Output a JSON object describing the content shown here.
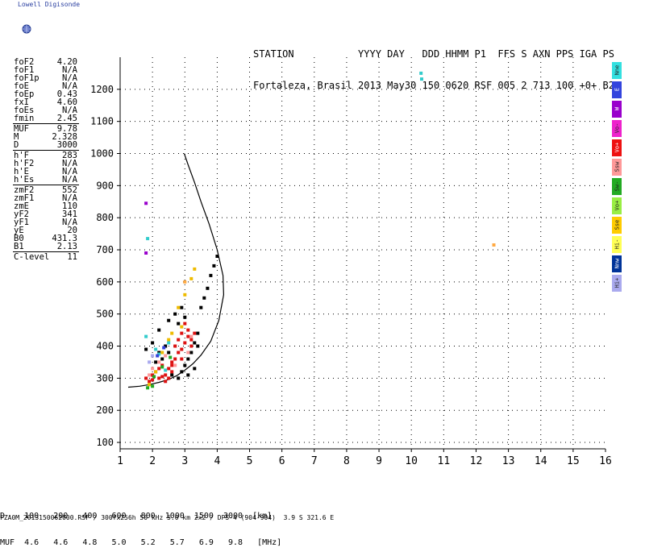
{
  "logo": {
    "text": "Lowell Digisonde",
    "icon": "globe-icon"
  },
  "header": {
    "line1": "STATION           YYYY DAY   DDD HHMM P1  FFS S AXN PPS IGA PS",
    "line2": "Fortaleza, Brasil 2013 May30 150 0620 RSF 005 2 713 100 +0+ B2"
  },
  "params": [
    {
      "label": "foF2",
      "value": "4.20"
    },
    {
      "label": "foF1",
      "value": "N/A"
    },
    {
      "label": "foF1p",
      "value": "N/A"
    },
    {
      "label": "foE",
      "value": "N/A"
    },
    {
      "label": "foEp",
      "value": "0.43"
    },
    {
      "label": "fxI",
      "value": "4.60"
    },
    {
      "label": "foEs",
      "value": "N/A"
    },
    {
      "label": "fmin",
      "value": "2.45"
    },
    {
      "sep": true
    },
    {
      "label": "MUF",
      "value": "9.78"
    },
    {
      "label": "M",
      "value": "2.328"
    },
    {
      "label": "D",
      "value": "3000"
    },
    {
      "sep": true
    },
    {
      "label": "h'F",
      "value": "283"
    },
    {
      "label": "h'F2",
      "value": "N/A"
    },
    {
      "label": "h'E",
      "value": "N/A"
    },
    {
      "label": "h'Es",
      "value": "N/A"
    },
    {
      "sep": true
    },
    {
      "label": "zmF2",
      "value": "552"
    },
    {
      "label": "zmF1",
      "value": "N/A"
    },
    {
      "label": "zmE",
      "value": "110"
    },
    {
      "label": "yF2",
      "value": "341"
    },
    {
      "label": "yF1",
      "value": "N/A"
    },
    {
      "label": "yE",
      "value": "20"
    },
    {
      "label": "B0",
      "value": "431.3"
    },
    {
      "label": "B1",
      "value": "2.13"
    },
    {
      "sep": true
    },
    {
      "label": "C-level",
      "value": "11"
    }
  ],
  "legend": [
    {
      "label": "Nne",
      "color": "#33e0e0"
    },
    {
      "label": "E",
      "color": "#3344dd"
    },
    {
      "label": "W",
      "color": "#9900cc"
    },
    {
      "label": "Vo-",
      "color": "#ee22cc"
    },
    {
      "label": "Vo+",
      "color": "#ee1111"
    },
    {
      "label": "Ssw",
      "color": "#ff9999"
    },
    {
      "label": "Sw-",
      "color": "#22aa22"
    },
    {
      "label": "Vo+",
      "color": "#99ee44"
    },
    {
      "label": "Sse",
      "color": "#ffcc00"
    },
    {
      "label": "Hi-",
      "color": "#ffff55"
    },
    {
      "label": "Nnw",
      "color": "#003399"
    },
    {
      "label": "Hi+",
      "color": "#aaaaee"
    }
  ],
  "footer": {
    "d_row": "D    100   200   400   600   800  1000  1500  3000  [km]",
    "muf_row": "MUF  4.6   4.6   4.8   5.0   5.2   5.7   6.9   9.8   [MHz]",
    "file_line": "FZA0M_2013150062000.RSF / 300fx256h 50 kHz 5.0 km 2x2 / DPS-4 (904-904)  3.9 S 321.6 E"
  },
  "chart_data": {
    "type": "scatter",
    "title": "",
    "xlabel": "",
    "ylabel": "",
    "xlim": [
      1,
      16
    ],
    "ylim": [
      80,
      1300
    ],
    "xticks": [
      1,
      2,
      3,
      4,
      5,
      6,
      7,
      8,
      9,
      10,
      11,
      12,
      13,
      14,
      15,
      16
    ],
    "yticks": [
      100,
      200,
      300,
      400,
      500,
      600,
      700,
      800,
      900,
      1000,
      1100,
      1200
    ],
    "grid": true,
    "profile_curve": {
      "x": [
        1.25,
        1.6,
        1.9,
        2.2,
        2.5,
        2.75,
        3.0,
        3.25,
        3.5,
        3.8,
        4.05,
        4.2,
        4.18,
        4.0,
        3.75,
        3.5,
        3.3,
        3.1,
        2.98
      ],
      "y": [
        272,
        275,
        280,
        287,
        296,
        308,
        325,
        345,
        372,
        415,
        480,
        560,
        620,
        700,
        780,
        850,
        910,
        965,
        1000
      ]
    },
    "series": [
      {
        "name": "Vo+",
        "color": "#dd1111",
        "points": [
          [
            1.8,
            300
          ],
          [
            1.9,
            290
          ],
          [
            2.0,
            310
          ],
          [
            2.1,
            320
          ],
          [
            2.2,
            300
          ],
          [
            2.3,
            340
          ],
          [
            2.4,
            310
          ],
          [
            2.5,
            330
          ],
          [
            2.6,
            350
          ],
          [
            2.6,
            320
          ],
          [
            2.7,
            360
          ],
          [
            2.7,
            400
          ],
          [
            2.8,
            380
          ],
          [
            2.8,
            420
          ],
          [
            2.9,
            390
          ],
          [
            2.9,
            440
          ],
          [
            3.0,
            410
          ],
          [
            3.0,
            470
          ],
          [
            3.1,
            430
          ],
          [
            3.1,
            450
          ],
          [
            3.2,
            420
          ],
          [
            3.3,
            440
          ],
          [
            2.4,
            290
          ],
          [
            2.5,
            300
          ],
          [
            2.2,
            330
          ],
          [
            2.0,
            295
          ],
          [
            2.3,
            305
          ],
          [
            2.6,
            340
          ],
          [
            2.9,
            360
          ],
          [
            3.2,
            400
          ]
        ]
      },
      {
        "name": "Vo-",
        "color": "#000000",
        "points": [
          [
            2.1,
            350
          ],
          [
            2.2,
            380
          ],
          [
            2.3,
            360
          ],
          [
            2.4,
            400
          ],
          [
            2.5,
            380
          ],
          [
            2.6,
            310
          ],
          [
            2.8,
            300
          ],
          [
            2.9,
            320
          ],
          [
            3.0,
            340
          ],
          [
            3.1,
            360
          ],
          [
            3.2,
            380
          ],
          [
            3.3,
            410
          ],
          [
            3.4,
            440
          ],
          [
            3.4,
            400
          ],
          [
            2.7,
            500
          ],
          [
            2.8,
            470
          ],
          [
            2.9,
            520
          ],
          [
            3.0,
            490
          ],
          [
            3.5,
            520
          ],
          [
            3.6,
            550
          ],
          [
            3.7,
            580
          ],
          [
            3.8,
            620
          ],
          [
            3.9,
            650
          ],
          [
            4.0,
            680
          ],
          [
            1.8,
            390
          ],
          [
            2.0,
            410
          ],
          [
            2.2,
            450
          ],
          [
            2.5,
            480
          ],
          [
            3.1,
            310
          ],
          [
            3.3,
            330
          ]
        ]
      },
      {
        "name": "Hi-",
        "color": "#eebb00",
        "points": [
          [
            2.1,
            320
          ],
          [
            2.3,
            380
          ],
          [
            2.5,
            420
          ],
          [
            2.6,
            440
          ],
          [
            2.8,
            520
          ],
          [
            3.0,
            560
          ],
          [
            3.2,
            610
          ],
          [
            3.3,
            640
          ],
          [
            2.9,
            460
          ],
          [
            1.9,
            280
          ]
        ]
      },
      {
        "name": "Ssw",
        "color": "#ff9999",
        "points": [
          [
            1.9,
            310
          ],
          [
            2.0,
            330
          ],
          [
            2.2,
            350
          ],
          [
            2.4,
            370
          ],
          [
            2.7,
            340
          ],
          [
            3.1,
            380
          ],
          [
            3.2,
            430
          ]
        ]
      },
      {
        "name": "Nne",
        "color": "#33cccc",
        "points": [
          [
            1.8,
            430
          ],
          [
            1.85,
            735
          ],
          [
            2.1,
            390
          ],
          [
            2.2,
            375
          ],
          [
            2.4,
            325
          ],
          [
            2.5,
            410
          ],
          [
            10.3,
            1250
          ],
          [
            10.32,
            1232
          ]
        ]
      },
      {
        "name": "E",
        "color": "#3344dd",
        "points": [
          [
            2.15,
            370
          ],
          [
            2.35,
            395
          ]
        ]
      },
      {
        "name": "W",
        "color": "#9900cc",
        "points": [
          [
            1.8,
            845
          ],
          [
            1.8,
            690
          ]
        ]
      },
      {
        "name": "Sw-",
        "color": "#22aa22",
        "points": [
          [
            2.05,
            305
          ],
          [
            2.3,
            335
          ],
          [
            2.55,
            365
          ],
          [
            1.85,
            270
          ],
          [
            2.0,
            275
          ]
        ]
      },
      {
        "name": "Sse",
        "color": "#ffaa44",
        "points": [
          [
            12.55,
            715
          ],
          [
            3.0,
            600
          ]
        ]
      },
      {
        "name": "Hi+",
        "color": "#aaaaee",
        "points": [
          [
            1.9,
            350
          ],
          [
            2.0,
            370
          ]
        ]
      }
    ]
  }
}
